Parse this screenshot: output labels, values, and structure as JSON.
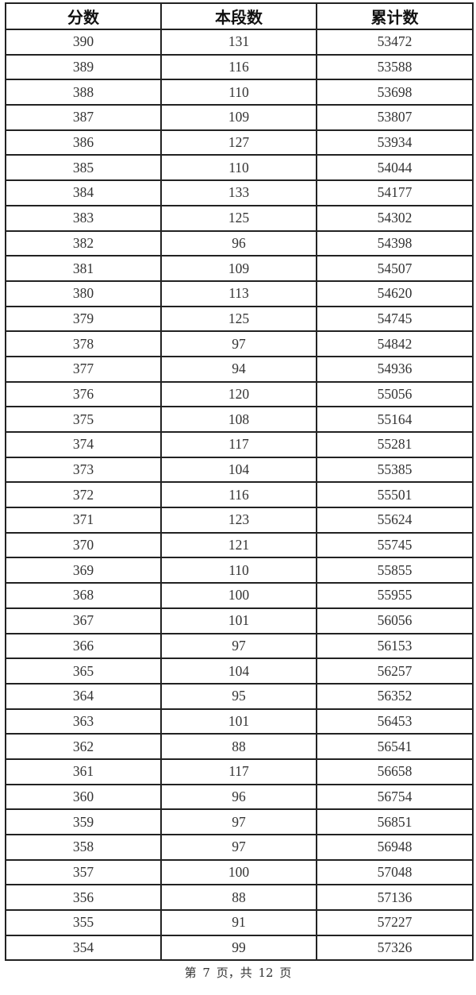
{
  "table": {
    "headers": [
      "分数",
      "本段数",
      "累计数"
    ],
    "rows": [
      [
        "390",
        "131",
        "53472"
      ],
      [
        "389",
        "116",
        "53588"
      ],
      [
        "388",
        "110",
        "53698"
      ],
      [
        "387",
        "109",
        "53807"
      ],
      [
        "386",
        "127",
        "53934"
      ],
      [
        "385",
        "110",
        "54044"
      ],
      [
        "384",
        "133",
        "54177"
      ],
      [
        "383",
        "125",
        "54302"
      ],
      [
        "382",
        "96",
        "54398"
      ],
      [
        "381",
        "109",
        "54507"
      ],
      [
        "380",
        "113",
        "54620"
      ],
      [
        "379",
        "125",
        "54745"
      ],
      [
        "378",
        "97",
        "54842"
      ],
      [
        "377",
        "94",
        "54936"
      ],
      [
        "376",
        "120",
        "55056"
      ],
      [
        "375",
        "108",
        "55164"
      ],
      [
        "374",
        "117",
        "55281"
      ],
      [
        "373",
        "104",
        "55385"
      ],
      [
        "372",
        "116",
        "55501"
      ],
      [
        "371",
        "123",
        "55624"
      ],
      [
        "370",
        "121",
        "55745"
      ],
      [
        "369",
        "110",
        "55855"
      ],
      [
        "368",
        "100",
        "55955"
      ],
      [
        "367",
        "101",
        "56056"
      ],
      [
        "366",
        "97",
        "56153"
      ],
      [
        "365",
        "104",
        "56257"
      ],
      [
        "364",
        "95",
        "56352"
      ],
      [
        "363",
        "101",
        "56453"
      ],
      [
        "362",
        "88",
        "56541"
      ],
      [
        "361",
        "117",
        "56658"
      ],
      [
        "360",
        "96",
        "56754"
      ],
      [
        "359",
        "97",
        "56851"
      ],
      [
        "358",
        "97",
        "56948"
      ],
      [
        "357",
        "100",
        "57048"
      ],
      [
        "356",
        "88",
        "57136"
      ],
      [
        "355",
        "91",
        "57227"
      ],
      [
        "354",
        "99",
        "57326"
      ]
    ]
  },
  "footer": {
    "page_text": "第 7 页，共 12 页"
  }
}
